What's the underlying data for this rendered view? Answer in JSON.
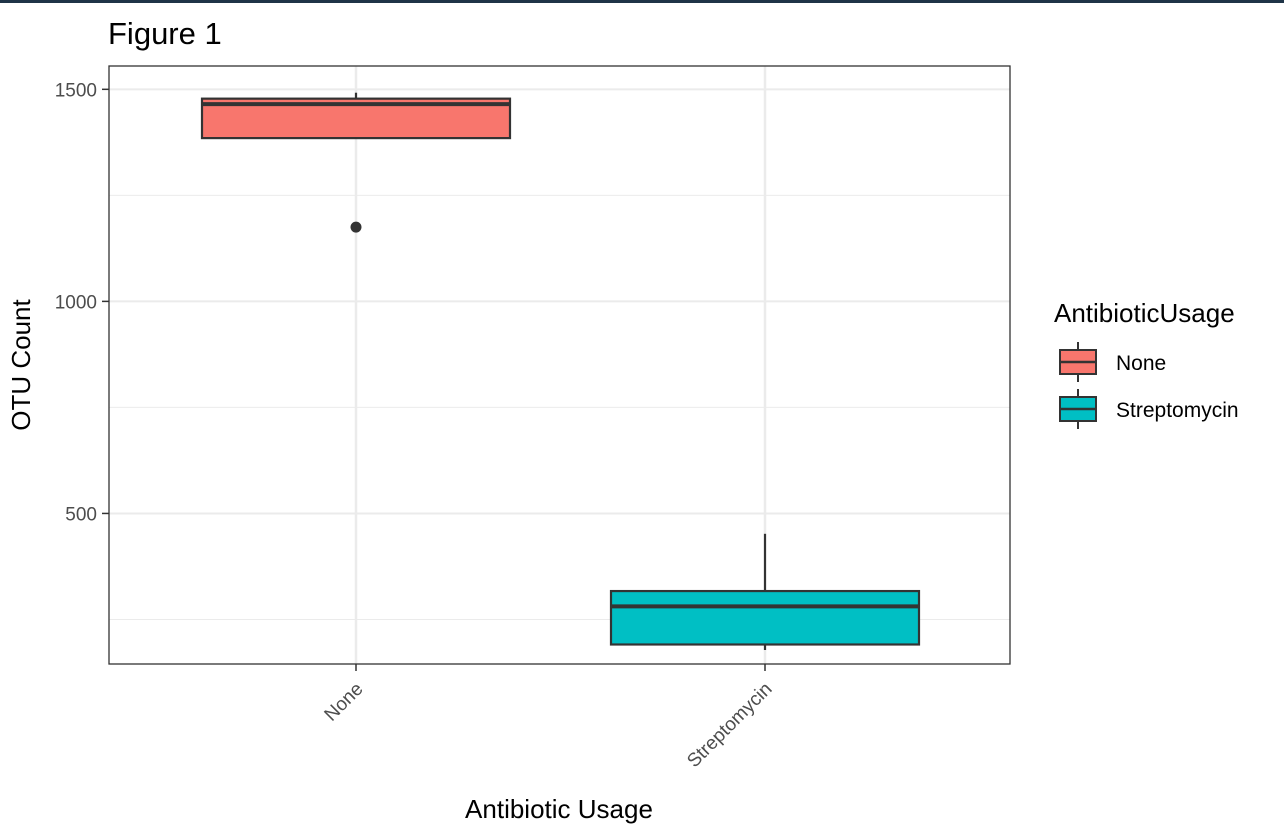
{
  "colors": {
    "None": "#F8766D",
    "Streptomycin": "#00BFC4",
    "grid": "#ebebeb",
    "panel_border": "#333333",
    "box_line": "#333333"
  },
  "chart_data": {
    "type": "boxplot",
    "title": "Figure 1",
    "xlabel": "Antibiotic Usage",
    "ylabel": "OTU Count",
    "categories": [
      "None",
      "Streptomycin"
    ],
    "ylim": [
      145,
      1555
    ],
    "yticks": [
      500,
      1000,
      1500
    ],
    "ytick_labels": [
      "500",
      "1000",
      "1500"
    ],
    "y_minor_ticks": [
      250,
      750,
      1250
    ],
    "grid": true,
    "legend": {
      "title": "AntibioticUsage",
      "position": "right",
      "entries": [
        "None",
        "Streptomycin"
      ]
    },
    "boxes": [
      {
        "category": "None",
        "whisker_low": 1385,
        "q1": 1385,
        "median": 1465,
        "q3": 1478,
        "whisker_high": 1492,
        "outliers": [
          1175
        ]
      },
      {
        "category": "Streptomycin",
        "whisker_low": 178,
        "q1": 191,
        "median": 281,
        "q3": 317,
        "whisker_high": 452,
        "outliers": []
      }
    ]
  }
}
